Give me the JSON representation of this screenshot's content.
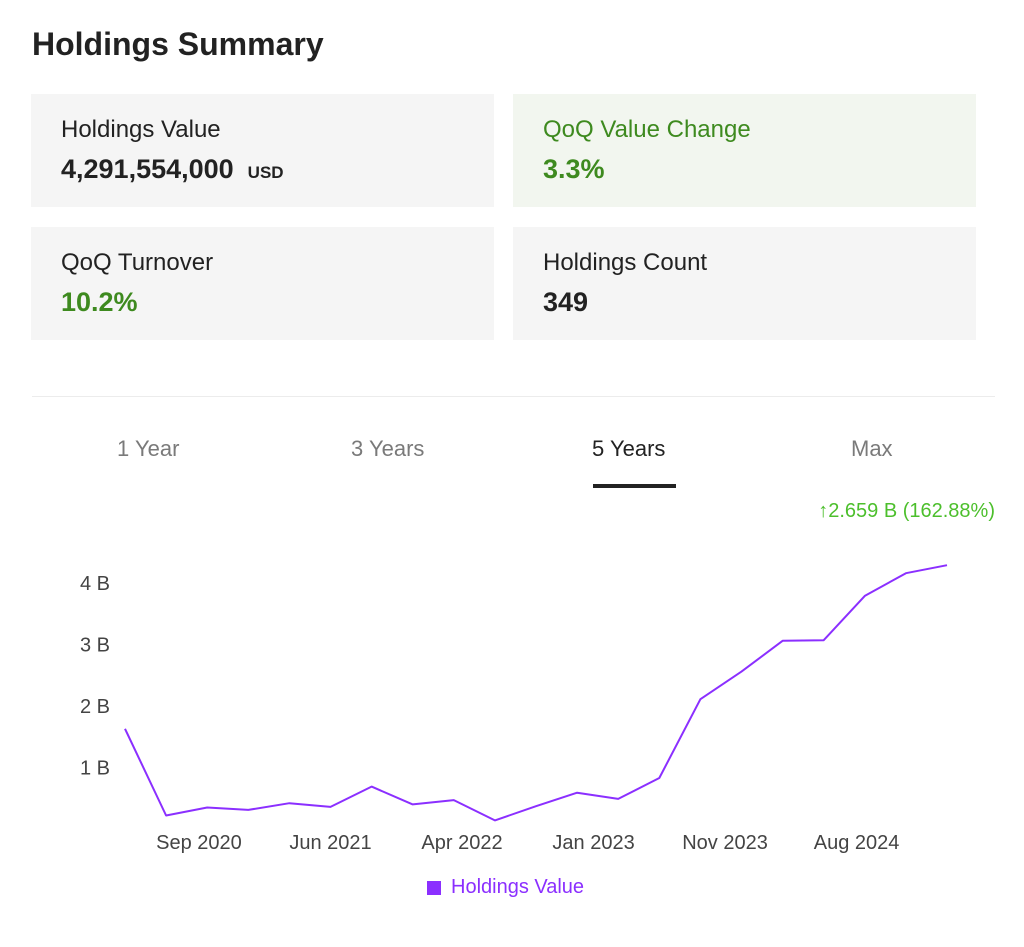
{
  "title": "Holdings Summary",
  "cards": {
    "holdings_value": {
      "label": "Holdings Value",
      "value": "4,291,554,000",
      "unit": "USD"
    },
    "qoq_value_change": {
      "label": "QoQ Value Change",
      "value": "3.3%"
    },
    "qoq_turnover": {
      "label": "QoQ Turnover",
      "value": "10.2%"
    },
    "holdings_count": {
      "label": "Holdings Count",
      "value": "349"
    }
  },
  "tabs": [
    "1 Year",
    "3 Years",
    "5 Years",
    "Max"
  ],
  "active_tab": "5 Years",
  "change_text": "↑2.659 B (162.88%)",
  "colors": {
    "positive": "#3e8a1f",
    "change": "#4cbf2c",
    "series": "#8b2fff"
  },
  "chart_data": {
    "type": "line",
    "ylim": [
      0,
      4.5
    ],
    "y_ticks": [
      1,
      2,
      3,
      4
    ],
    "y_tick_labels": [
      "1 B",
      "2 B",
      "3 B",
      "4 B"
    ],
    "x_tick_labels": [
      {
        "index": 1.8,
        "label": "Sep 2020"
      },
      {
        "index": 5,
        "label": "Jun 2021"
      },
      {
        "index": 8.2,
        "label": "Apr 2022"
      },
      {
        "index": 11.4,
        "label": "Jan 2023"
      },
      {
        "index": 14.6,
        "label": "Nov 2023"
      },
      {
        "index": 17.8,
        "label": "Aug 2024"
      }
    ],
    "series": [
      {
        "name": "Holdings Value",
        "values": [
          1.63,
          0.22,
          0.35,
          0.31,
          0.42,
          0.36,
          0.69,
          0.4,
          0.47,
          0.14,
          0.37,
          0.59,
          0.49,
          0.83,
          2.11,
          2.56,
          3.06,
          3.07,
          3.79,
          4.16,
          4.29
        ]
      }
    ]
  }
}
